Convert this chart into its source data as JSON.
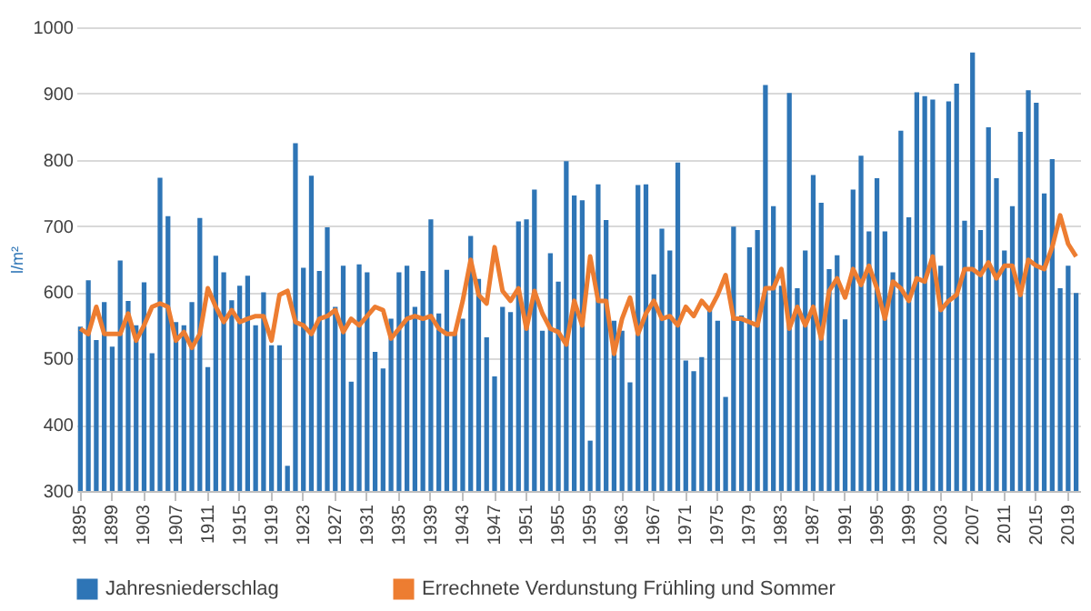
{
  "chart_data": {
    "type": "bar",
    "ylabel": "l/m²",
    "ylim": [
      300,
      1000
    ],
    "yticks": [
      300,
      400,
      500,
      600,
      700,
      800,
      900,
      1000
    ],
    "grid": "y",
    "legend": "bottom",
    "categories": [
      "1895",
      null,
      null,
      null,
      "1899",
      null,
      null,
      null,
      "1903",
      null,
      null,
      null,
      "1907",
      null,
      null,
      null,
      "1911",
      null,
      null,
      null,
      "1915",
      null,
      null,
      null,
      "1919",
      null,
      null,
      null,
      "1923",
      null,
      null,
      null,
      "1927",
      null,
      null,
      null,
      "1931",
      null,
      null,
      null,
      "1935",
      null,
      null,
      null,
      "1939",
      null,
      null,
      null,
      "1943",
      null,
      null,
      null,
      "1947",
      null,
      null,
      null,
      "1951",
      null,
      null,
      null,
      "1955",
      null,
      null,
      null,
      "1959",
      null,
      null,
      null,
      "1963",
      null,
      null,
      null,
      "1967",
      null,
      null,
      null,
      "1971",
      null,
      null,
      null,
      "1975",
      null,
      null,
      null,
      "1979",
      null,
      null,
      null,
      "1983",
      null,
      null,
      null,
      "1987",
      null,
      null,
      null,
      "1991",
      null,
      null,
      null,
      "1995",
      null,
      null,
      null,
      "1999",
      null,
      null,
      null,
      "2003",
      null,
      null,
      null,
      "2007",
      null,
      null,
      null,
      "2011",
      null,
      null,
      null,
      "2015",
      null,
      null,
      null,
      "2019",
      null
    ],
    "series": [
      {
        "name": "Jahresniederschlag",
        "color": "#2e75b6",
        "values": [
          548,
          618,
          528,
          585,
          518,
          648,
          587,
          550,
          615,
          508,
          773,
          715,
          555,
          550,
          585,
          712,
          487,
          655,
          630,
          588,
          610,
          625,
          550,
          600,
          520,
          520,
          338,
          825,
          637,
          776,
          632,
          698,
          578,
          640,
          465,
          642,
          630,
          510,
          485,
          560,
          630,
          640,
          578,
          632,
          710,
          568,
          634,
          540,
          560,
          685,
          620,
          532,
          473,
          578,
          570,
          707,
          710,
          755,
          542,
          659,
          616,
          798,
          746,
          739,
          376,
          763,
          709,
          557,
          542,
          464,
          762,
          763,
          627,
          696,
          663,
          796,
          497,
          481,
          502,
          578,
          557,
          442,
          699,
          565,
          668,
          694,
          913,
          730,
          610,
          901,
          606,
          663,
          777,
          735,
          635,
          656,
          559,
          755,
          806,
          692,
          772,
          692,
          630,
          844,
          713,
          902,
          896,
          891,
          640,
          888,
          915,
          708,
          962,
          694,
          849,
          772,
          663,
          730,
          842,
          905,
          886,
          749,
          801,
          606,
          640,
          599
        ]
      },
      {
        "name": "Errechnete Verdunstung Frühling und Sommer",
        "type": "line",
        "color": "#ed7d31",
        "values": [
          545,
          537,
          578,
          537,
          537,
          537,
          568,
          527,
          550,
          578,
          583,
          578,
          527,
          540,
          516,
          537,
          606,
          578,
          555,
          573,
          555,
          560,
          564,
          564,
          527,
          596,
          602,
          555,
          550,
          537,
          560,
          564,
          573,
          540,
          560,
          550,
          564,
          578,
          573,
          530,
          545,
          560,
          564,
          560,
          564,
          545,
          537,
          537,
          587,
          649,
          596,
          583,
          668,
          602,
          587,
          606,
          545,
          602,
          568,
          545,
          540,
          521,
          587,
          550,
          654,
          587,
          587,
          507,
          560,
          592,
          537,
          568,
          587,
          560,
          564,
          550,
          578,
          564,
          587,
          573,
          596,
          626,
          560,
          560,
          555,
          550,
          606,
          606,
          635,
          545,
          578,
          550,
          578,
          530,
          602,
          621,
          592,
          635,
          611,
          640,
          606,
          560,
          616,
          606,
          587,
          621,
          616,
          654,
          573,
          587,
          596,
          635,
          635,
          626,
          645,
          621,
          640,
          640,
          596,
          649,
          640,
          635,
          668,
          716,
          673,
          654
        ]
      }
    ]
  }
}
